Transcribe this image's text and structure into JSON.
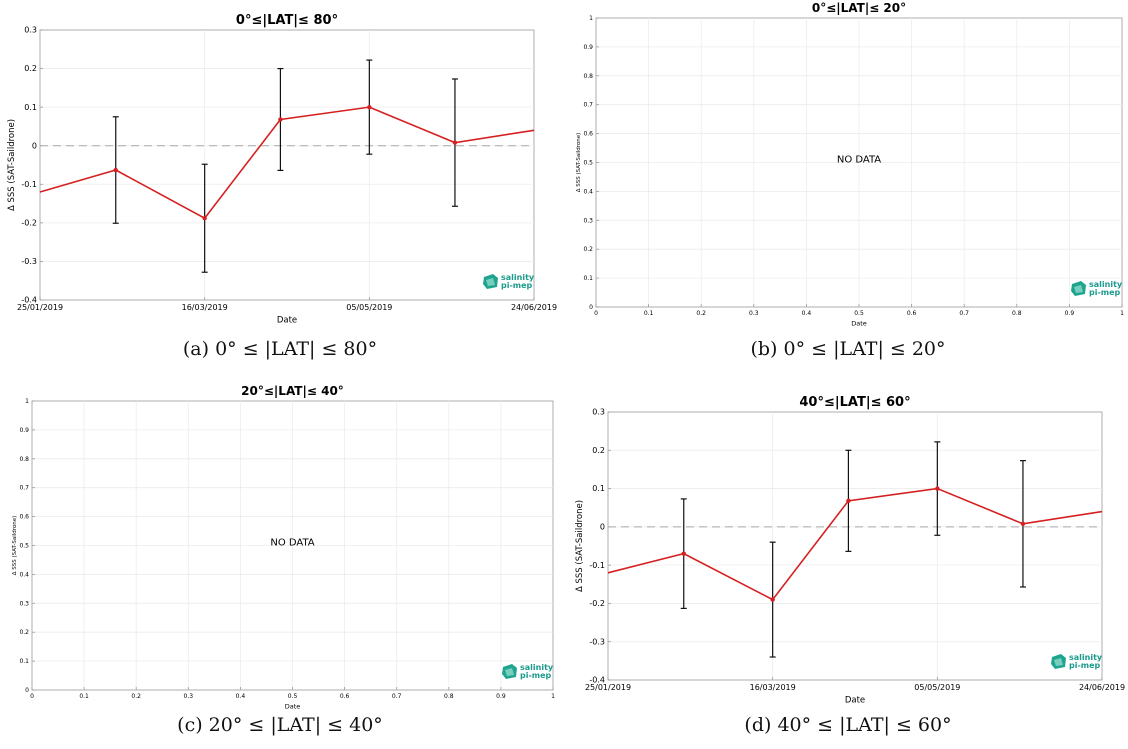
{
  "panels": [
    {
      "id": "a",
      "caption": "(a) 0° ≤ |LAT| ≤ 80°",
      "chart_data": {
        "type": "line",
        "title": "0°≤|LAT|≤ 80°",
        "xlabel": "Date",
        "ylabel": "Δ SSS (SAT-Saildrone)",
        "x_ticks": [
          "25/01/2019",
          "16/03/2019",
          "05/05/2019",
          "24/06/2019"
        ],
        "y_ticks": [
          "-0.4",
          "-0.3",
          "-0.2",
          "-0.1",
          "0",
          "0.1",
          "0.2",
          "0.3"
        ],
        "ylim": [
          -0.4,
          0.3
        ],
        "xlim": [
          "25/01/2019",
          "24/06/2019"
        ],
        "reference_line": 0,
        "grid": true,
        "series": [
          {
            "color": "#d62020",
            "x": [
              "25/01/2019",
              "17/02/2019",
              "16/03/2019",
              "08/04/2019",
              "05/05/2019",
              "31/05/2019",
              "24/06/2019"
            ],
            "y": [
              -0.12,
              -0.063,
              -0.188,
              0.068,
              0.1,
              0.008,
              0.04
            ],
            "err": [
              null,
              0.138,
              0.14,
              0.132,
              0.122,
              0.165,
              null
            ],
            "markers": [
              false,
              true,
              true,
              true,
              true,
              true,
              false
            ]
          }
        ],
        "annotation": "",
        "logo": [
          "salinity",
          "pi-mep"
        ]
      }
    },
    {
      "id": "b",
      "caption": "(b) 0° ≤ |LAT| ≤ 20°",
      "chart_data": {
        "type": "line",
        "title": "0°≤|LAT|≤ 20°",
        "xlabel": "Date",
        "ylabel": "Δ SSS (SAT-Saildrone)",
        "x_ticks": [
          "0",
          "0.1",
          "0.2",
          "0.3",
          "0.4",
          "0.5",
          "0.6",
          "0.7",
          "0.8",
          "0.9",
          "1"
        ],
        "y_ticks": [
          "0",
          "0.1",
          "0.2",
          "0.3",
          "0.4",
          "0.5",
          "0.6",
          "0.7",
          "0.8",
          "0.9",
          "1"
        ],
        "ylim": [
          0,
          1
        ],
        "grid": true,
        "series": [],
        "annotation": "NO DATA",
        "logo": [
          "salinity",
          "pi-mep"
        ]
      }
    },
    {
      "id": "c",
      "caption": "(c) 20° ≤ |LAT| ≤ 40°",
      "chart_data": {
        "type": "line",
        "title": "20°≤|LAT|≤ 40°",
        "xlabel": "Date",
        "ylabel": "Δ SSS (SAT-Saildrone)",
        "x_ticks": [
          "0",
          "0.1",
          "0.2",
          "0.3",
          "0.4",
          "0.5",
          "0.6",
          "0.7",
          "0.8",
          "0.9",
          "1"
        ],
        "y_ticks": [
          "0",
          "0.1",
          "0.2",
          "0.3",
          "0.4",
          "0.5",
          "0.6",
          "0.7",
          "0.8",
          "0.9",
          "1"
        ],
        "ylim": [
          0,
          1
        ],
        "grid": true,
        "series": [],
        "annotation": "NO DATA",
        "logo": [
          "salinity",
          "pi-mep"
        ]
      }
    },
    {
      "id": "d",
      "caption": "(d) 40° ≤ |LAT| ≤ 60°",
      "chart_data": {
        "type": "line",
        "title": "40°≤|LAT|≤ 60°",
        "xlabel": "Date",
        "ylabel": "Δ SSS (SAT-Saildrone)",
        "x_ticks": [
          "25/01/2019",
          "16/03/2019",
          "05/05/2019",
          "24/06/2019"
        ],
        "y_ticks": [
          "-0.4",
          "-0.3",
          "-0.2",
          "-0.1",
          "0",
          "0.1",
          "0.2",
          "0.3"
        ],
        "ylim": [
          -0.4,
          0.3
        ],
        "xlim": [
          "25/01/2019",
          "24/06/2019"
        ],
        "reference_line": 0,
        "grid": true,
        "series": [
          {
            "color": "#d62020",
            "x": [
              "25/01/2019",
              "17/02/2019",
              "16/03/2019",
              "08/04/2019",
              "05/05/2019",
              "31/05/2019",
              "24/06/2019"
            ],
            "y": [
              -0.12,
              -0.07,
              -0.19,
              0.068,
              0.1,
              0.008,
              0.04
            ],
            "err": [
              null,
              0.143,
              0.15,
              0.132,
              0.122,
              0.165,
              null
            ],
            "markers": [
              false,
              true,
              true,
              true,
              true,
              true,
              false
            ]
          }
        ],
        "annotation": "",
        "logo": [
          "salinity",
          "pi-mep"
        ]
      }
    }
  ]
}
